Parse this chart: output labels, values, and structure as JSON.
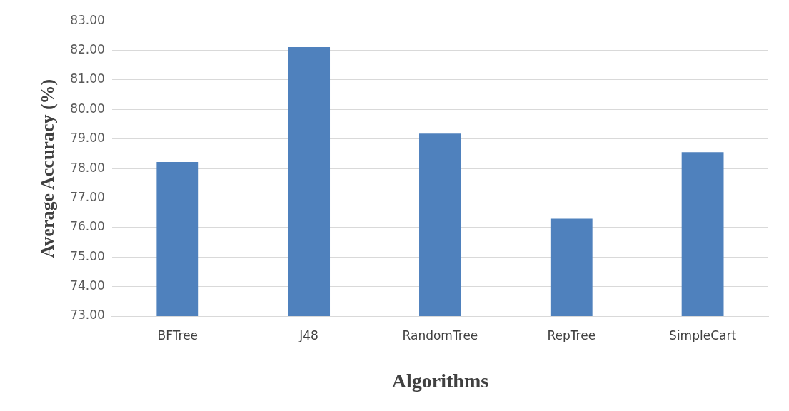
{
  "chart_data": {
    "type": "bar",
    "xlabel": "Algorithms",
    "ylabel": "Average Accuracy (%)",
    "categories": [
      "BFTree",
      "J48",
      "RandomTree",
      "RepTree",
      "SimpleCart"
    ],
    "values": [
      78.22,
      82.11,
      79.18,
      76.3,
      78.55
    ],
    "color": "#4f81bd",
    "ylim": [
      73,
      83
    ],
    "yticks": [
      {
        "value": 73,
        "label": "73.00"
      },
      {
        "value": 74,
        "label": "74.00"
      },
      {
        "value": 75,
        "label": "75.00"
      },
      {
        "value": 76,
        "label": "76.00"
      },
      {
        "value": 77,
        "label": "77.00"
      },
      {
        "value": 78,
        "label": "78.00"
      },
      {
        "value": 79,
        "label": "79.00"
      },
      {
        "value": 80,
        "label": "80.00"
      },
      {
        "value": 81,
        "label": "81.00"
      },
      {
        "value": 82,
        "label": "82.00"
      },
      {
        "value": 83,
        "label": "83.00"
      }
    ],
    "grid": "y",
    "legend": false
  }
}
